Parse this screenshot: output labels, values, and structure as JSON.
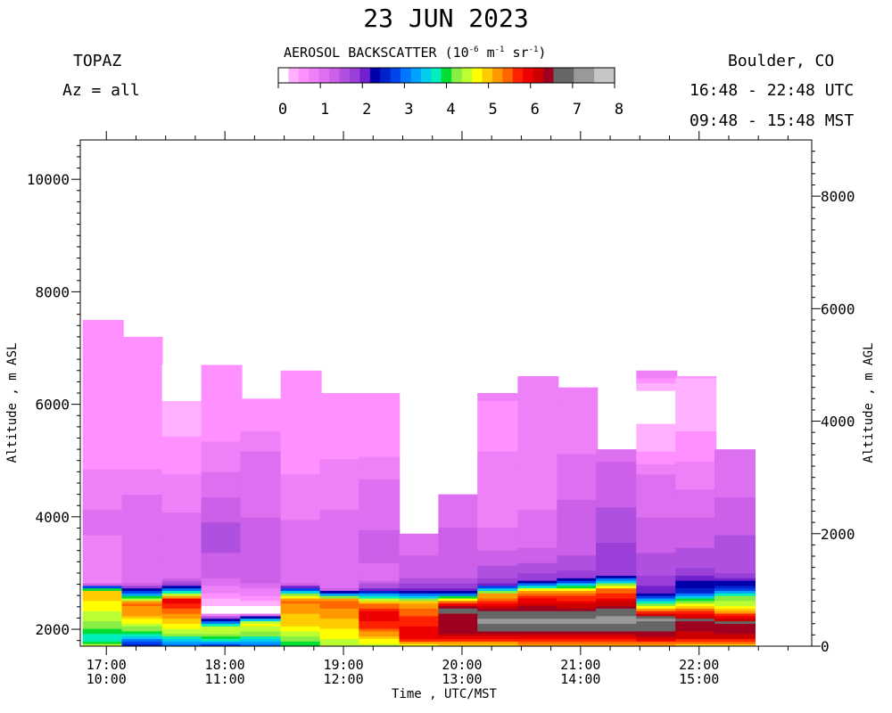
{
  "header": {
    "title": "23 JUN 2023",
    "instrument": "TOPAZ",
    "azimuth": "Az = all",
    "location": "Boulder, CO",
    "utc_range": "16:48 - 22:48 UTC",
    "mst_range": "09:48 - 15:48 MST"
  },
  "colorbar": {
    "label_prefix": "AEROSOL BACKSCATTER (10",
    "exp1": "-6",
    "mid1": " m",
    "exp2": "-1",
    "mid2": " sr",
    "exp3": "-1",
    "suffix": ")",
    "ticks": [
      "0",
      "1",
      "2",
      "3",
      "4",
      "5",
      "6",
      "7",
      "8"
    ],
    "colors": [
      "#ffffff",
      "#ffb0ff",
      "#ff90ff",
      "#ee80f8",
      "#dd70f0",
      "#cc60e8",
      "#b050e0",
      "#9a40d8",
      "#7020cc",
      "#0000aa",
      "#0022cc",
      "#0044ee",
      "#0077ff",
      "#00a0ff",
      "#00ccee",
      "#00eebb",
      "#00dd33",
      "#88ee44",
      "#bbff33",
      "#ffff00",
      "#ffcc00",
      "#ff9900",
      "#ff6600",
      "#ff2200",
      "#ee0000",
      "#cc0000",
      "#a00020",
      "#666666",
      "#666666",
      "#999999",
      "#999999",
      "#c6c6c6",
      "#c6c6c6"
    ]
  },
  "chart_data": {
    "type": "heatmap",
    "title": "23 JUN 2023",
    "xlabel": "Time , UTC/MST",
    "ylabel": "Altitude , m ASL",
    "ylabel_right": "Altitude , m AGL",
    "xlim_hours_utc": [
      16.78,
      22.95
    ],
    "ylim_m_asl": [
      1700,
      10700
    ],
    "ylim_m_agl_right": [
      0,
      9000
    ],
    "x_ticks": [
      {
        "h": 17,
        "utc": "17:00",
        "mst": "10:00"
      },
      {
        "h": 18,
        "utc": "18:00",
        "mst": "11:00"
      },
      {
        "h": 19,
        "utc": "19:00",
        "mst": "12:00"
      },
      {
        "h": 20,
        "utc": "20:00",
        "mst": "13:00"
      },
      {
        "h": 21,
        "utc": "21:00",
        "mst": "14:00"
      },
      {
        "h": 22,
        "utc": "22:00",
        "mst": "15:00"
      }
    ],
    "y_ticks_left": [
      "2000",
      "4000",
      "6000",
      "8000",
      "10000"
    ],
    "y_ticks_right": [
      "0",
      "2000",
      "4000",
      "6000",
      "8000"
    ],
    "colorscale_range": [
      0,
      8
    ],
    "units": "10^-6 m^-1 sr^-1",
    "profiles": [
      {
        "t": 16.8,
        "top": 7500,
        "levels": [
          [
            1700,
            4.5
          ],
          [
            1800,
            3.6
          ],
          [
            2000,
            4.2
          ],
          [
            2200,
            4.5
          ],
          [
            2450,
            4.8
          ],
          [
            2650,
            5.0
          ],
          [
            2800,
            0.9
          ],
          [
            4000,
            1.0
          ],
          [
            5500,
            0.5
          ],
          [
            7500,
            0.5
          ]
        ]
      },
      {
        "t": 17.13,
        "top": 7200,
        "levels": [
          [
            1700,
            2.5
          ],
          [
            1850,
            3.5
          ],
          [
            2000,
            4.3
          ],
          [
            2250,
            5.2
          ],
          [
            2450,
            5.4
          ],
          [
            2600,
            3.3
          ],
          [
            2800,
            1.0
          ],
          [
            4000,
            1.2
          ],
          [
            5200,
            0.5
          ],
          [
            6700,
            0.5
          ],
          [
            7200,
            0.5
          ]
        ]
      },
      {
        "t": 17.47,
        "top": 6700,
        "levels": [
          [
            1700,
            3.0
          ],
          [
            1900,
            4.3
          ],
          [
            2200,
            5.2
          ],
          [
            2500,
            6.0
          ],
          [
            2750,
            2.0
          ],
          [
            2900,
            1.1
          ],
          [
            3400,
            1.2
          ],
          [
            5100,
            0.6
          ],
          [
            6700,
            0.0
          ]
        ]
      },
      {
        "t": 17.8,
        "top": 6700,
        "levels": [
          [
            1700,
            2.8
          ],
          [
            1850,
            4.2
          ],
          [
            2000,
            4.7
          ],
          [
            2300,
            0.0
          ],
          [
            2850,
            1.2
          ],
          [
            3600,
            1.6
          ],
          [
            4700,
            1.0
          ],
          [
            5800,
            0.5
          ],
          [
            6700,
            0.5
          ]
        ]
      },
      {
        "t": 18.13,
        "top": 6100,
        "levels": [
          [
            1700,
            3.0
          ],
          [
            1900,
            4.3
          ],
          [
            2100,
            4.7
          ],
          [
            2280,
            0.0
          ],
          [
            2850,
            1.3
          ],
          [
            3500,
            1.3
          ],
          [
            5100,
            1.0
          ],
          [
            5800,
            0.5
          ],
          [
            6100,
            0.5
          ]
        ]
      },
      {
        "t": 18.47,
        "top": 6600,
        "levels": [
          [
            1700,
            4.0
          ],
          [
            2000,
            4.8
          ],
          [
            2200,
            5.0
          ],
          [
            2500,
            5.4
          ],
          [
            2650,
            3.5
          ],
          [
            2800,
            1.1
          ],
          [
            3800,
            1.0
          ],
          [
            5200,
            0.6
          ],
          [
            6600,
            0.5
          ]
        ]
      },
      {
        "t": 18.8,
        "top": 6200,
        "levels": [
          [
            1700,
            4.4
          ],
          [
            1950,
            4.8
          ],
          [
            2300,
            5.3
          ],
          [
            2500,
            5.5
          ],
          [
            2700,
            1.2
          ],
          [
            4000,
            1.0
          ],
          [
            5500,
            0.6
          ],
          [
            6200,
            0.5
          ]
        ]
      },
      {
        "t": 19.13,
        "top": 6200,
        "levels": [
          [
            1700,
            4.5
          ],
          [
            2000,
            5.6
          ],
          [
            2250,
            6.0
          ],
          [
            2450,
            5.3
          ],
          [
            2700,
            1.8
          ],
          [
            2900,
            1.1
          ],
          [
            3400,
            1.3
          ],
          [
            4600,
            1.0
          ],
          [
            5400,
            0.5
          ],
          [
            6200,
            0.5
          ]
        ]
      },
      {
        "t": 19.47,
        "top": 3700,
        "levels": [
          [
            1700,
            4.8
          ],
          [
            1850,
            6.1
          ],
          [
            2450,
            5.2
          ],
          [
            2650,
            2.2
          ],
          [
            2900,
            1.4
          ],
          [
            3300,
            1.2
          ],
          [
            3700,
            1.2
          ]
        ]
      },
      {
        "t": 19.8,
        "top": 4400,
        "levels": [
          [
            1700,
            5.0
          ],
          [
            1900,
            6.3
          ],
          [
            2350,
            6.6
          ],
          [
            2500,
            5.0
          ],
          [
            2650,
            2.1
          ],
          [
            2900,
            1.4
          ],
          [
            3400,
            1.4
          ],
          [
            3800,
            1.2
          ],
          [
            4400,
            1.2
          ]
        ]
      },
      {
        "t": 20.13,
        "top": 6200,
        "levels": [
          [
            1700,
            5.0
          ],
          [
            1900,
            6.4
          ],
          [
            2150,
            7.2
          ],
          [
            2600,
            5.1
          ],
          [
            2800,
            1.8
          ],
          [
            3050,
            1.5
          ],
          [
            3600,
            1.0
          ],
          [
            4800,
            0.8
          ],
          [
            5800,
            0.6
          ],
          [
            6200,
            0.8
          ]
        ]
      },
      {
        "t": 20.47,
        "top": 6500,
        "levels": [
          [
            1700,
            5.1
          ],
          [
            1900,
            6.4
          ],
          [
            2150,
            7.2
          ],
          [
            2650,
            5.3
          ],
          [
            2850,
            1.9
          ],
          [
            3200,
            1.4
          ],
          [
            3700,
            1.0
          ],
          [
            5000,
            0.9
          ],
          [
            6000,
            0.8
          ],
          [
            6500,
            0.8
          ]
        ]
      },
      {
        "t": 20.8,
        "top": 6300,
        "levels": [
          [
            1700,
            5.2
          ],
          [
            1900,
            6.4
          ],
          [
            2150,
            7.2
          ],
          [
            2650,
            5.2
          ],
          [
            2900,
            1.8
          ],
          [
            3500,
            1.3
          ],
          [
            4400,
            1.2
          ],
          [
            5300,
            0.9
          ],
          [
            6300,
            0.8
          ]
        ]
      },
      {
        "t": 21.13,
        "top": 5200,
        "levels": [
          [
            1700,
            5.1
          ],
          [
            1900,
            6.4
          ],
          [
            2150,
            7.2
          ],
          [
            2700,
            5.3
          ],
          [
            2950,
            1.8
          ],
          [
            3500,
            1.7
          ],
          [
            4300,
            1.4
          ],
          [
            5000,
            1.2
          ],
          [
            5200,
            1.2
          ]
        ]
      },
      {
        "t": 21.47,
        "top": 6600,
        "levels": [
          [
            1700,
            5.1
          ],
          [
            1850,
            6.3
          ],
          [
            2150,
            7.1
          ],
          [
            2600,
            2.2
          ],
          [
            3000,
            1.6
          ],
          [
            3700,
            1.3
          ],
          [
            4700,
            1.0
          ],
          [
            5100,
            0.5
          ],
          [
            6100,
            0.0
          ],
          [
            6600,
            1.0
          ]
        ]
      },
      {
        "t": 21.8,
        "top": 6500,
        "levels": [
          [
            1700,
            5.0
          ],
          [
            1850,
            6.2
          ],
          [
            2150,
            6.6
          ],
          [
            2450,
            4.5
          ],
          [
            2650,
            2.6
          ],
          [
            3100,
            1.6
          ],
          [
            4000,
            1.2
          ],
          [
            5000,
            0.7
          ],
          [
            5900,
            0.3
          ],
          [
            6500,
            0.5
          ]
        ]
      },
      {
        "t": 22.13,
        "top": 5200,
        "levels": [
          [
            1700,
            5.0
          ],
          [
            1850,
            6.2
          ],
          [
            2100,
            6.6
          ],
          [
            2350,
            4.8
          ],
          [
            2550,
            4.2
          ],
          [
            2700,
            2.7
          ],
          [
            3000,
            1.6
          ],
          [
            3900,
            1.4
          ],
          [
            4600,
            1.1
          ],
          [
            5200,
            1.0
          ]
        ]
      }
    ]
  }
}
